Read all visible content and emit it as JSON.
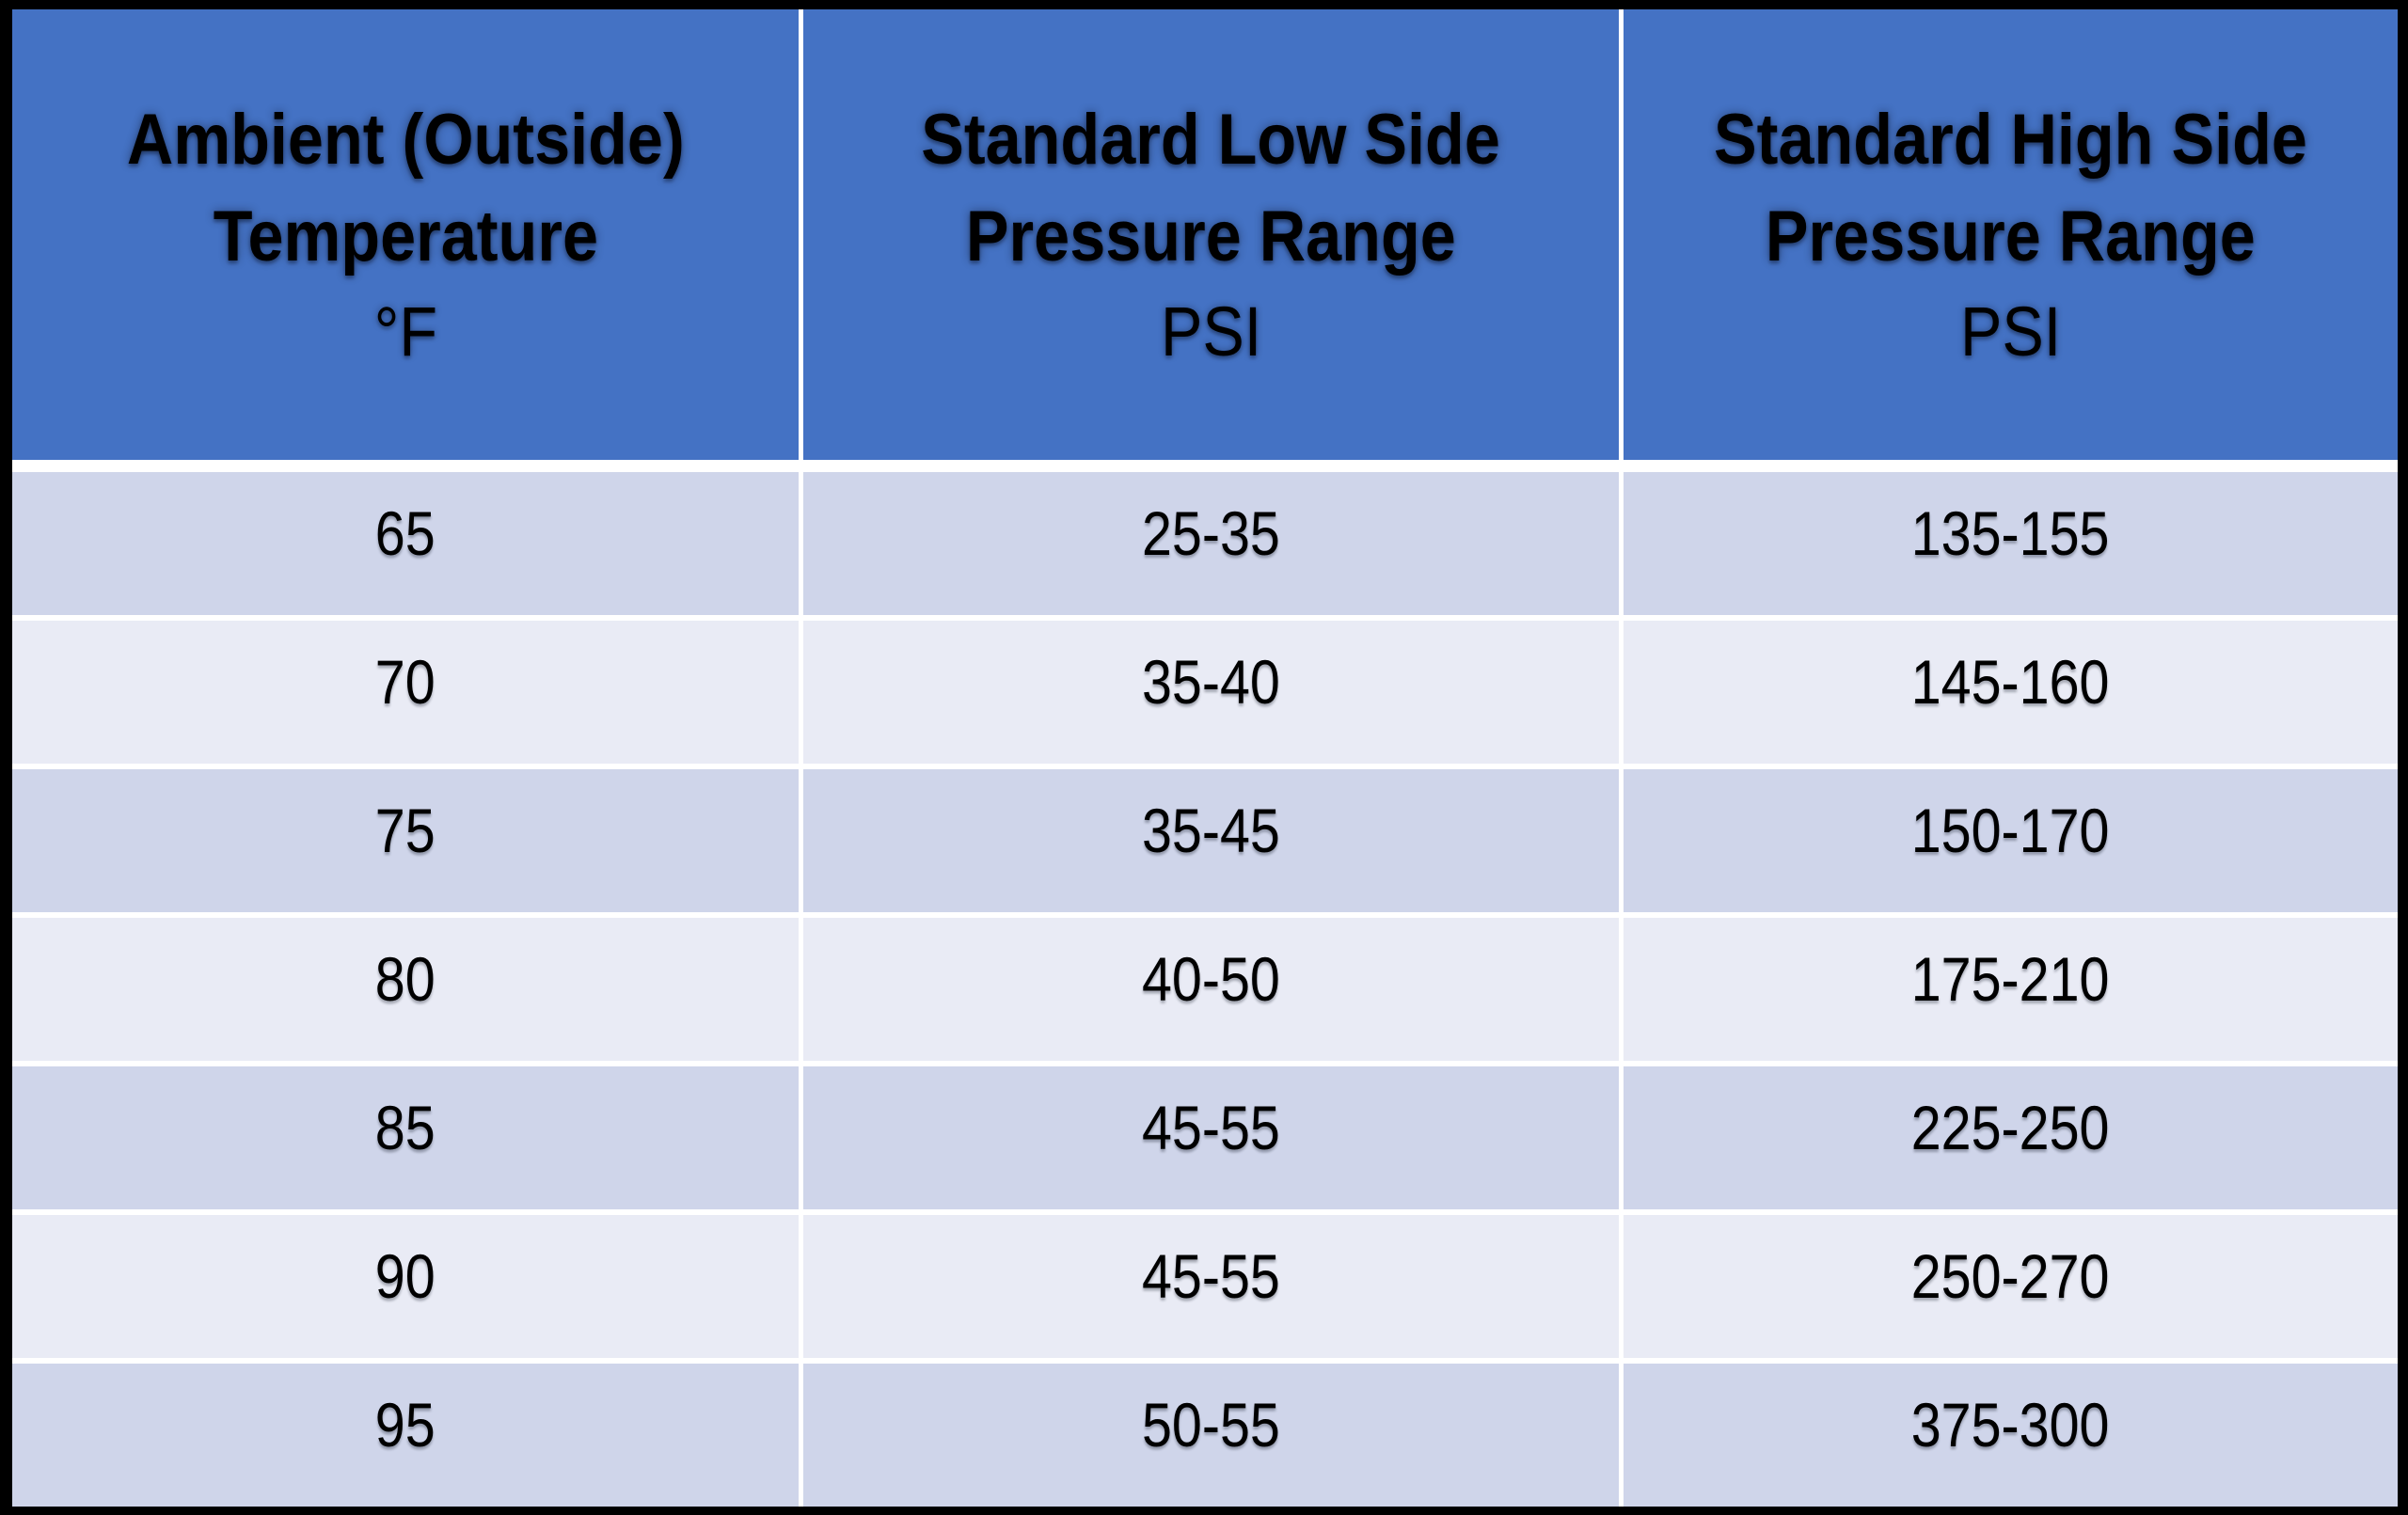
{
  "chart_data": {
    "type": "table",
    "columns": [
      {
        "line1": "Ambient (Outside)",
        "line2": "Temperature",
        "unit": "°F"
      },
      {
        "line1": "Standard Low Side",
        "line2": "Pressure Range",
        "unit": "PSI"
      },
      {
        "line1": "Standard High Side",
        "line2": "Pressure Range",
        "unit": "PSI"
      }
    ],
    "rows": [
      [
        "65",
        "25-35",
        "135-155"
      ],
      [
        "70",
        "35-40",
        "145-160"
      ],
      [
        "75",
        "35-45",
        "150-170"
      ],
      [
        "80",
        "40-50",
        "175-210"
      ],
      [
        "85",
        "45-55",
        "225-250"
      ],
      [
        "90",
        "45-55",
        "250-270"
      ],
      [
        "95",
        "50-55",
        "375-300"
      ]
    ],
    "layout": {
      "banded_rows": true,
      "header_position": "top"
    }
  },
  "colors": {
    "header_fill": "#4472C4",
    "band_dark": "#CFD5EA",
    "band_light": "#E9EBF5",
    "separator": "#FFFFFF",
    "border": "#000000",
    "text": "#000000"
  }
}
